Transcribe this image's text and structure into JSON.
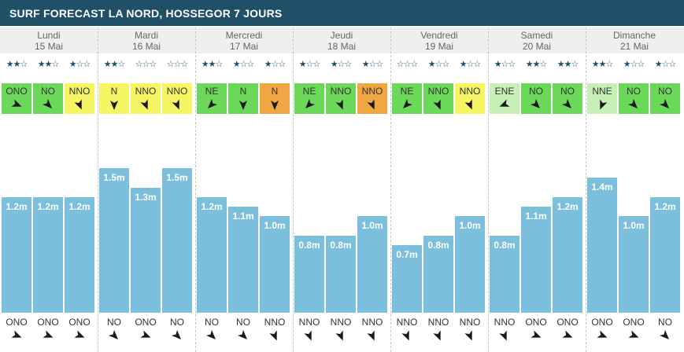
{
  "header": {
    "title": "SURF FORECAST LA NORD, HOSSEGOR 7 JOURS"
  },
  "colors": {
    "header_bg": "#1f5068",
    "bar": "#7bbfdc",
    "wind_green": "#6cd85a",
    "wind_light_green": "#c6f0b6",
    "wind_yellow": "#f6f563",
    "wind_orange": "#f0a743",
    "star": "#1f5068"
  },
  "days": [
    {
      "name": "Lundi",
      "date": "15 Mai"
    },
    {
      "name": "Mardi",
      "date": "16 Mai"
    },
    {
      "name": "Mercredi",
      "date": "17 Mai"
    },
    {
      "name": "Jeudi",
      "date": "18 Mai"
    },
    {
      "name": "Vendredi",
      "date": "19 Mai"
    },
    {
      "name": "Samedi",
      "date": "20 Mai"
    },
    {
      "name": "Dimanche",
      "date": "21 Mai"
    }
  ],
  "chart_data": {
    "type": "bar",
    "unit": "m",
    "ylim": [
      0,
      1.8
    ],
    "wave_height": [
      1.2,
      1.2,
      1.2,
      1.5,
      1.3,
      1.5,
      1.2,
      1.1,
      1.0,
      0.8,
      0.8,
      1.0,
      0.7,
      0.8,
      1.0,
      0.8,
      1.1,
      1.2,
      1.4,
      1.0,
      1.2
    ],
    "wave_labels": [
      "1.2m",
      "1.2m",
      "1.2m",
      "1.5m",
      "1.3m",
      "1.5m",
      "1.2m",
      "1.1m",
      "1.0m",
      "0.8m",
      "0.8m",
      "1.0m",
      "0.7m",
      "0.8m",
      "1.0m",
      "0.8m",
      "1.1m",
      "1.2m",
      "1.4m",
      "1.0m",
      "1.2m"
    ],
    "stars": [
      2,
      2,
      1,
      2,
      0,
      0,
      2,
      1,
      1,
      1,
      1,
      1,
      0,
      1,
      1,
      1,
      2,
      2,
      2,
      1,
      1
    ],
    "wind_dir": [
      "ONO",
      "NO",
      "NNO",
      "N",
      "NNO",
      "NNO",
      "NE",
      "N",
      "N",
      "NE",
      "NNO",
      "NNO",
      "NE",
      "NNO",
      "NNO",
      "ENE",
      "NO",
      "NO",
      "NNE",
      "NO",
      "NO"
    ],
    "wind_color": [
      "green",
      "green",
      "yellow",
      "yellow",
      "yellow",
      "yellow",
      "green",
      "green",
      "orange",
      "green",
      "green",
      "orange",
      "green",
      "green",
      "yellow",
      "light_green",
      "green",
      "green",
      "light_green",
      "green",
      "green"
    ],
    "swell_dir": [
      "ONO",
      "ONO",
      "ONO",
      "NO",
      "ONO",
      "NO",
      "NO",
      "NO",
      "NNO",
      "NNO",
      "NNO",
      "NNO",
      "NNO",
      "NNO",
      "NNO",
      "NNO",
      "ONO",
      "ONO",
      "ONO",
      "ONO",
      "NO"
    ]
  }
}
